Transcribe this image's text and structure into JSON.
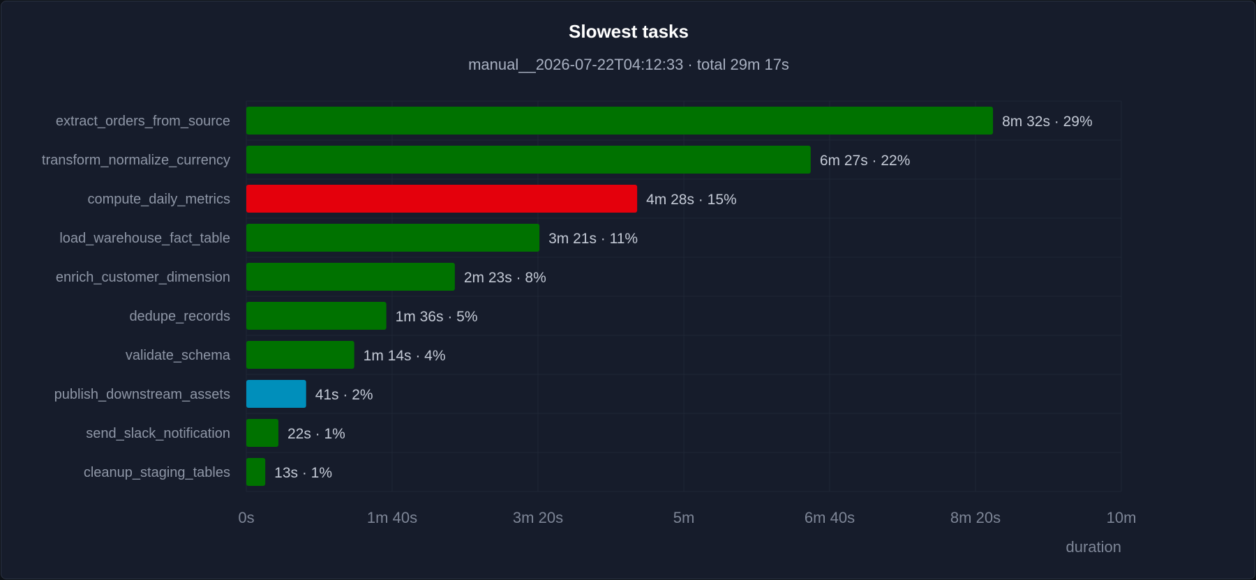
{
  "chart_data": {
    "type": "bar",
    "orientation": "horizontal",
    "title": "Slowest tasks",
    "subtitle": "manual__2026-07-22T04:12:33 · total 29m 17s",
    "xlabel": "duration",
    "xlim": [
      0,
      600
    ],
    "x_unit": "seconds",
    "ticks": [
      {
        "value": 0,
        "label": "0s"
      },
      {
        "value": 100,
        "label": "1m 40s"
      },
      {
        "value": 200,
        "label": "3m 20s"
      },
      {
        "value": 300,
        "label": "5m"
      },
      {
        "value": 400,
        "label": "6m 40s"
      },
      {
        "value": 500,
        "label": "8m 20s"
      },
      {
        "value": 600,
        "label": "10m"
      }
    ],
    "grid": true,
    "colors": {
      "success": "#007200",
      "failed": "#e4000c",
      "running": "#008fbb"
    },
    "bars": [
      {
        "category": "extract_orders_from_source",
        "value": 512,
        "label": "8m 32s · 29%",
        "status": "success"
      },
      {
        "category": "transform_normalize_currency",
        "value": 387,
        "label": "6m 27s · 22%",
        "status": "success"
      },
      {
        "category": "compute_daily_metrics",
        "value": 268,
        "label": "4m 28s · 15%",
        "status": "failed"
      },
      {
        "category": "load_warehouse_fact_table",
        "value": 201,
        "label": "3m 21s · 11%",
        "status": "success"
      },
      {
        "category": "enrich_customer_dimension",
        "value": 143,
        "label": "2m 23s · 8%",
        "status": "success"
      },
      {
        "category": "dedupe_records",
        "value": 96,
        "label": "1m 36s · 5%",
        "status": "success"
      },
      {
        "category": "validate_schema",
        "value": 74,
        "label": "1m 14s · 4%",
        "status": "success"
      },
      {
        "category": "publish_downstream_assets",
        "value": 41,
        "label": "41s · 2%",
        "status": "running"
      },
      {
        "category": "send_slack_notification",
        "value": 22,
        "label": "22s · 1%",
        "status": "success"
      },
      {
        "category": "cleanup_staging_tables",
        "value": 13,
        "label": "13s · 1%",
        "status": "success"
      }
    ]
  }
}
